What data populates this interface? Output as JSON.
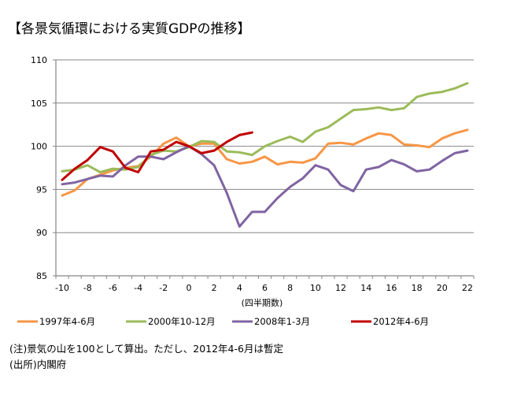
{
  "title": "【各景気循環における実質GDPの推移】",
  "notes": [
    "(注)景気の山を100として算出。ただし、2012年4-6月は暫定",
    "(出所)内閣府"
  ],
  "chart_data": {
    "type": "line",
    "title": "【各景気循環における実質GDPの推移】",
    "xlabel": "(四半期数)",
    "ylabel": "",
    "xlim": [
      -10,
      22
    ],
    "ylim": [
      85,
      110
    ],
    "grid": true,
    "legend_position": "bottom",
    "y_ticks": [
      85,
      90,
      95,
      100,
      105,
      110
    ],
    "x_ticks": [
      -10,
      -8,
      -6,
      -4,
      -2,
      0,
      2,
      4,
      6,
      8,
      10,
      12,
      14,
      16,
      18,
      20,
      22
    ],
    "series": [
      {
        "name": "1997年4-6月",
        "color": "#f79646",
        "x": [
          -10,
          -9,
          -8,
          -7,
          -6,
          -5,
          -4,
          -3,
          -2,
          -1,
          0,
          1,
          2,
          3,
          4,
          5,
          6,
          7,
          8,
          9,
          10,
          11,
          12,
          13,
          14,
          15,
          16,
          17,
          18,
          19,
          20,
          21,
          22
        ],
        "values": [
          94.3,
          94.9,
          96.2,
          96.7,
          97.2,
          97.5,
          97.7,
          98.8,
          100.3,
          101.0,
          100.0,
          100.3,
          100.3,
          98.5,
          98.0,
          98.2,
          98.8,
          97.9,
          98.2,
          98.1,
          98.6,
          100.3,
          100.4,
          100.2,
          100.9,
          101.5,
          101.3,
          100.2,
          100.1,
          99.9,
          100.9,
          101.5,
          101.9
        ]
      },
      {
        "name": "2000年10-12月",
        "color": "#9bbb59",
        "x": [
          -10,
          -9,
          -8,
          -7,
          -6,
          -5,
          -4,
          -3,
          -2,
          -1,
          0,
          1,
          2,
          3,
          4,
          5,
          6,
          7,
          8,
          9,
          10,
          11,
          12,
          13,
          14,
          15,
          16,
          17,
          18,
          19,
          20,
          21,
          22
        ],
        "values": [
          97.1,
          97.3,
          97.8,
          97.0,
          97.4,
          97.3,
          97.6,
          99.0,
          99.5,
          99.4,
          99.9,
          100.6,
          100.5,
          99.4,
          99.3,
          99.0,
          100.0,
          100.6,
          101.1,
          100.5,
          101.7,
          102.2,
          103.2,
          104.2,
          104.3,
          104.5,
          104.2,
          104.4,
          105.7,
          106.1,
          106.3,
          106.7,
          107.3
        ]
      },
      {
        "name": "2008年1-3月",
        "color": "#8064a2",
        "x": [
          -10,
          -9,
          -8,
          -7,
          -6,
          -5,
          -4,
          -3,
          -2,
          -1,
          0,
          1,
          2,
          3,
          4,
          5,
          6,
          7,
          8,
          9,
          10,
          11,
          12,
          13,
          14,
          15,
          16,
          17,
          18,
          19,
          20,
          21,
          22
        ],
        "values": [
          95.6,
          95.8,
          96.2,
          96.6,
          96.5,
          97.8,
          98.8,
          98.8,
          98.5,
          99.3,
          100.0,
          99.1,
          97.8,
          94.6,
          90.7,
          92.4,
          92.4,
          94.0,
          95.3,
          96.3,
          97.8,
          97.3,
          95.5,
          94.8,
          97.3,
          97.6,
          98.4,
          97.9,
          97.1,
          97.3,
          98.3,
          99.2,
          99.5
        ]
      },
      {
        "name": "2012年4-6月",
        "color": "#c00000",
        "x": [
          -10,
          -9,
          -8,
          -7,
          -6,
          -5,
          -4,
          -3,
          -2,
          -1,
          0,
          1,
          2,
          3,
          4,
          5
        ],
        "values": [
          96.1,
          97.4,
          98.4,
          99.9,
          99.4,
          97.5,
          97.0,
          99.4,
          99.6,
          100.5,
          100.0,
          99.2,
          99.5,
          100.5,
          101.3,
          101.6
        ]
      }
    ]
  }
}
